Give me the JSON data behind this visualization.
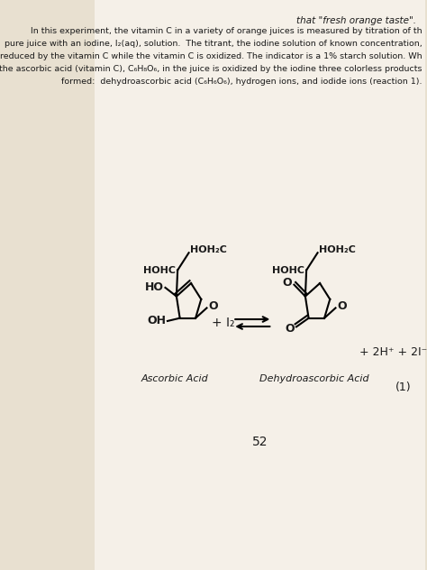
{
  "bg_color": "#e8e0d0",
  "page_bg": "#f5f0e8",
  "title_text": "that \"fresh orange taste\".",
  "paragraph": "    In this experiment, the vitamin C in a variety of orange juices is measured by titration of the\npure juice with an iodine, I₂₊ᴄᴠᴒ, solution.  The titrant, the iodine solution of known concentration,\nreduced by the vitamin C while the vitamin C is oxidized. The indicator is a 1% starch solution. Whe\nthe ascorbic acid (vitamin C), C₆H₈O₆, in the juice is oxidized by the iodine three colorless products are\nformed:  dehydroascorbic acid (C₆H₆O₆), hydrogen ions, and iodide ions (reaction 1).",
  "ascorbic_label": "Ascorbic Acid",
  "dehydro_label": "Dehydroascorbic Acid",
  "plus_i2": "+ I₂",
  "products": "+ 2H⁺ + 2I⁻",
  "equation_number": "(1)",
  "page_number": "52",
  "text_color": "#1a1a1a"
}
